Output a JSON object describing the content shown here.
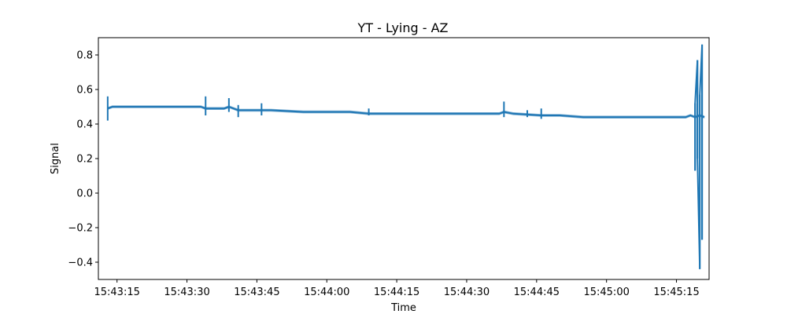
{
  "chart_data": {
    "type": "line",
    "title": "YT - Lying - AZ",
    "xlabel": "Time",
    "ylabel": "Signal",
    "xlim": [
      "15:43:11",
      "15:45:22"
    ],
    "ylim": [
      -0.5,
      0.9
    ],
    "x_tick_labels": [
      "15:43:15",
      "15:43:30",
      "15:43:45",
      "15:44:00",
      "15:44:15",
      "15:44:30",
      "15:44:45",
      "15:45:00",
      "15:45:15"
    ],
    "y_ticks": [
      -0.4,
      -0.2,
      0.0,
      0.2,
      0.4,
      0.6,
      0.8
    ],
    "y_tick_labels": [
      "−0.4",
      "−0.2",
      "0.0",
      "0.2",
      "0.4",
      "0.6",
      "0.8"
    ],
    "grid": false,
    "legend": "none",
    "series_color": "#1f77b4",
    "series": [
      {
        "x": [
          "15:43:13",
          "15:43:14",
          "15:43:20",
          "15:43:26",
          "15:43:30",
          "15:43:33",
          "15:43:34",
          "15:43:38",
          "15:43:39",
          "15:43:41",
          "15:43:46",
          "15:43:48",
          "15:43:55",
          "15:44:00",
          "15:44:05",
          "15:44:09",
          "15:44:15",
          "15:44:25",
          "15:44:30",
          "15:44:37",
          "15:44:38",
          "15:44:40",
          "15:44:46",
          "15:44:50",
          "15:44:55",
          "15:45:00",
          "15:45:05",
          "15:45:10",
          "15:45:15",
          "15:45:17",
          "15:45:18",
          "15:45:19",
          "15:45:20",
          "15:45:21"
        ],
        "values": [
          0.49,
          0.5,
          0.5,
          0.5,
          0.5,
          0.5,
          0.49,
          0.49,
          0.5,
          0.48,
          0.48,
          0.48,
          0.47,
          0.47,
          0.47,
          0.46,
          0.46,
          0.46,
          0.46,
          0.46,
          0.47,
          0.46,
          0.45,
          0.45,
          0.44,
          0.44,
          0.44,
          0.44,
          0.44,
          0.44,
          0.45,
          0.44,
          0.45,
          0.44
        ],
        "spikes": [
          {
            "x": "15:43:13",
            "low": 0.42,
            "high": 0.56
          },
          {
            "x": "15:43:34",
            "low": 0.45,
            "high": 0.56
          },
          {
            "x": "15:43:39",
            "low": 0.47,
            "high": 0.55
          },
          {
            "x": "15:43:41",
            "low": 0.44,
            "high": 0.51
          },
          {
            "x": "15:43:46",
            "low": 0.45,
            "high": 0.52
          },
          {
            "x": "15:44:09",
            "low": 0.45,
            "high": 0.49
          },
          {
            "x": "15:44:38",
            "low": 0.44,
            "high": 0.53
          },
          {
            "x": "15:44:43",
            "low": 0.44,
            "high": 0.48
          },
          {
            "x": "15:44:46",
            "low": 0.43,
            "high": 0.49
          },
          {
            "x": "15:45:19",
            "low": 0.13,
            "high": 0.52
          },
          {
            "x": "15:45:19.5",
            "low": 0.2,
            "high": 0.77
          },
          {
            "x": "15:45:20",
            "low": -0.44,
            "high": 0.57
          },
          {
            "x": "15:45:20.5",
            "low": -0.27,
            "high": 0.86
          }
        ]
      }
    ]
  }
}
